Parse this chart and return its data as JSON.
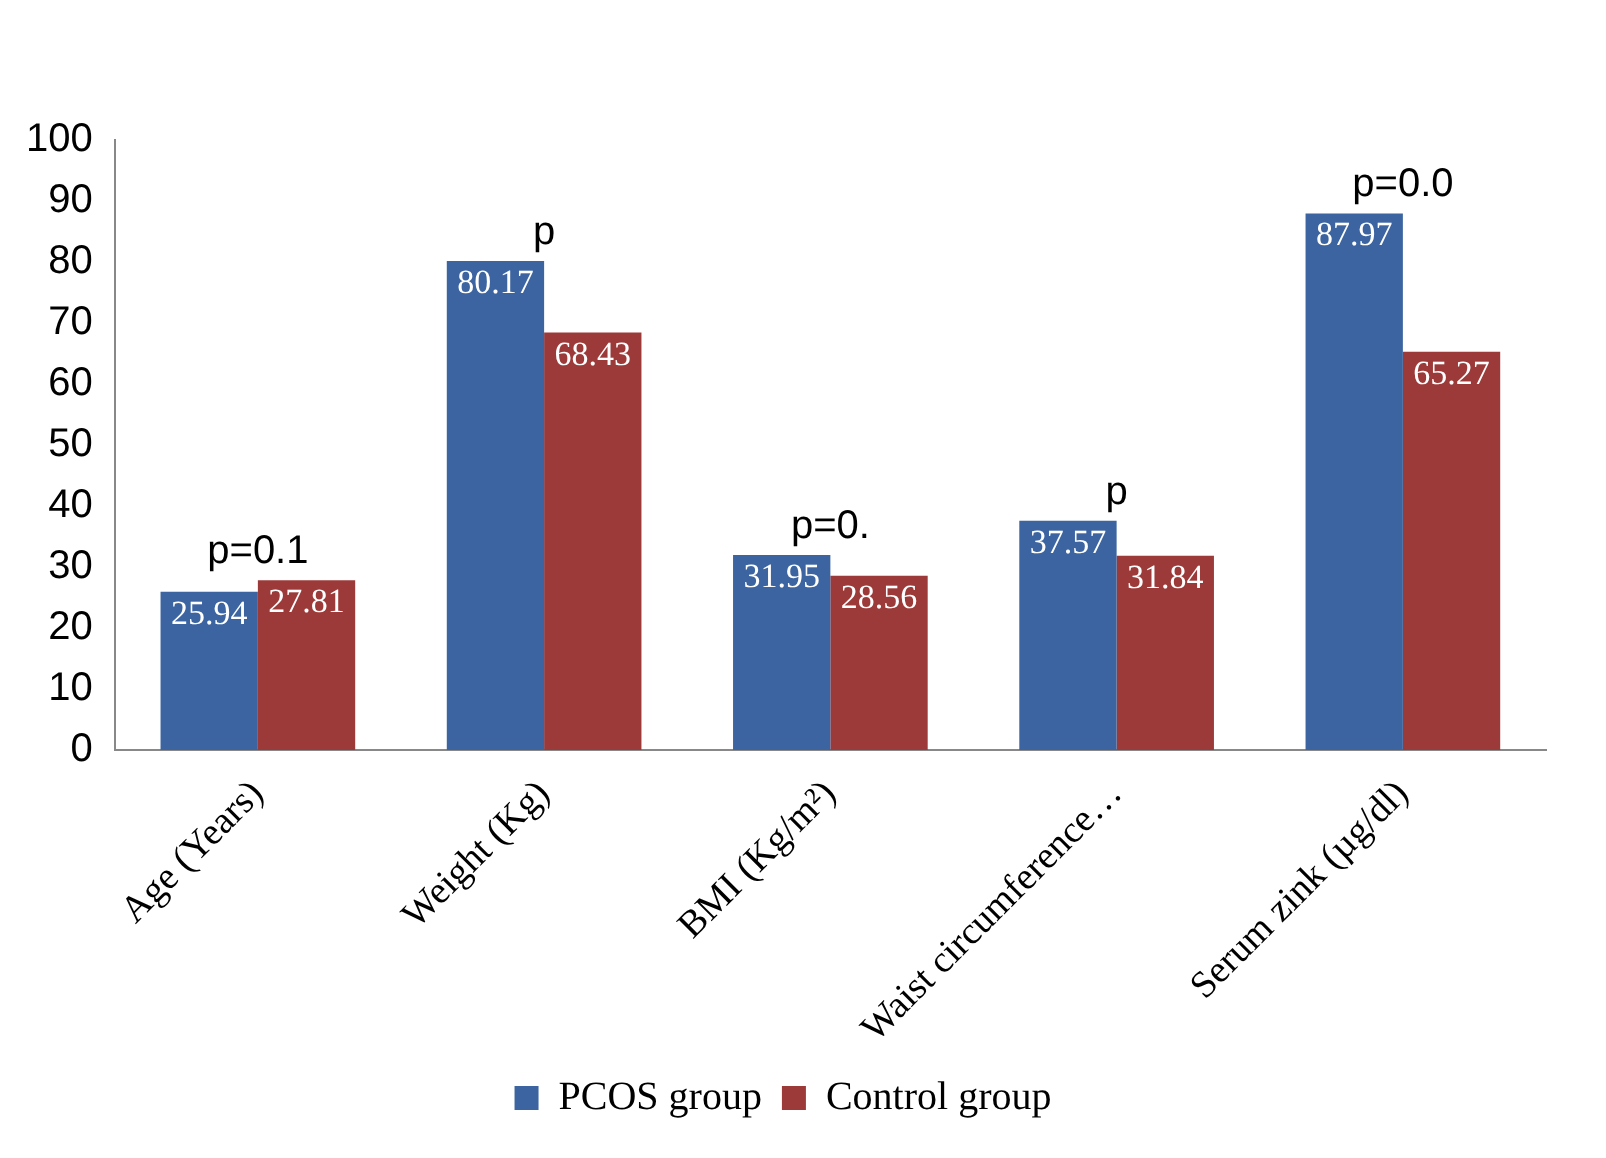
{
  "chart_data": {
    "type": "bar",
    "categories": [
      "Age (Years)",
      "Weight (Kg)",
      "BMI (Kg/m²)",
      "Waist circumference…",
      "Serum zink (µg/dl)"
    ],
    "series": [
      {
        "name": "PCOS group",
        "color": "#3b64a0",
        "values": [
          25.94,
          80.17,
          31.95,
          37.57,
          87.97
        ]
      },
      {
        "name": "Control group",
        "color": "#9b3a38",
        "values": [
          27.81,
          68.43,
          28.56,
          31.84,
          65.27
        ]
      }
    ],
    "ylim": [
      0,
      100
    ],
    "yticks": [
      0,
      10,
      20,
      30,
      40,
      50,
      60,
      70,
      80,
      90,
      100
    ],
    "grid": false,
    "legend": "bottom",
    "data_labels": true,
    "annotations": [
      "p=0.1",
      "p",
      "p=0.",
      "p",
      "p=0.0"
    ]
  }
}
